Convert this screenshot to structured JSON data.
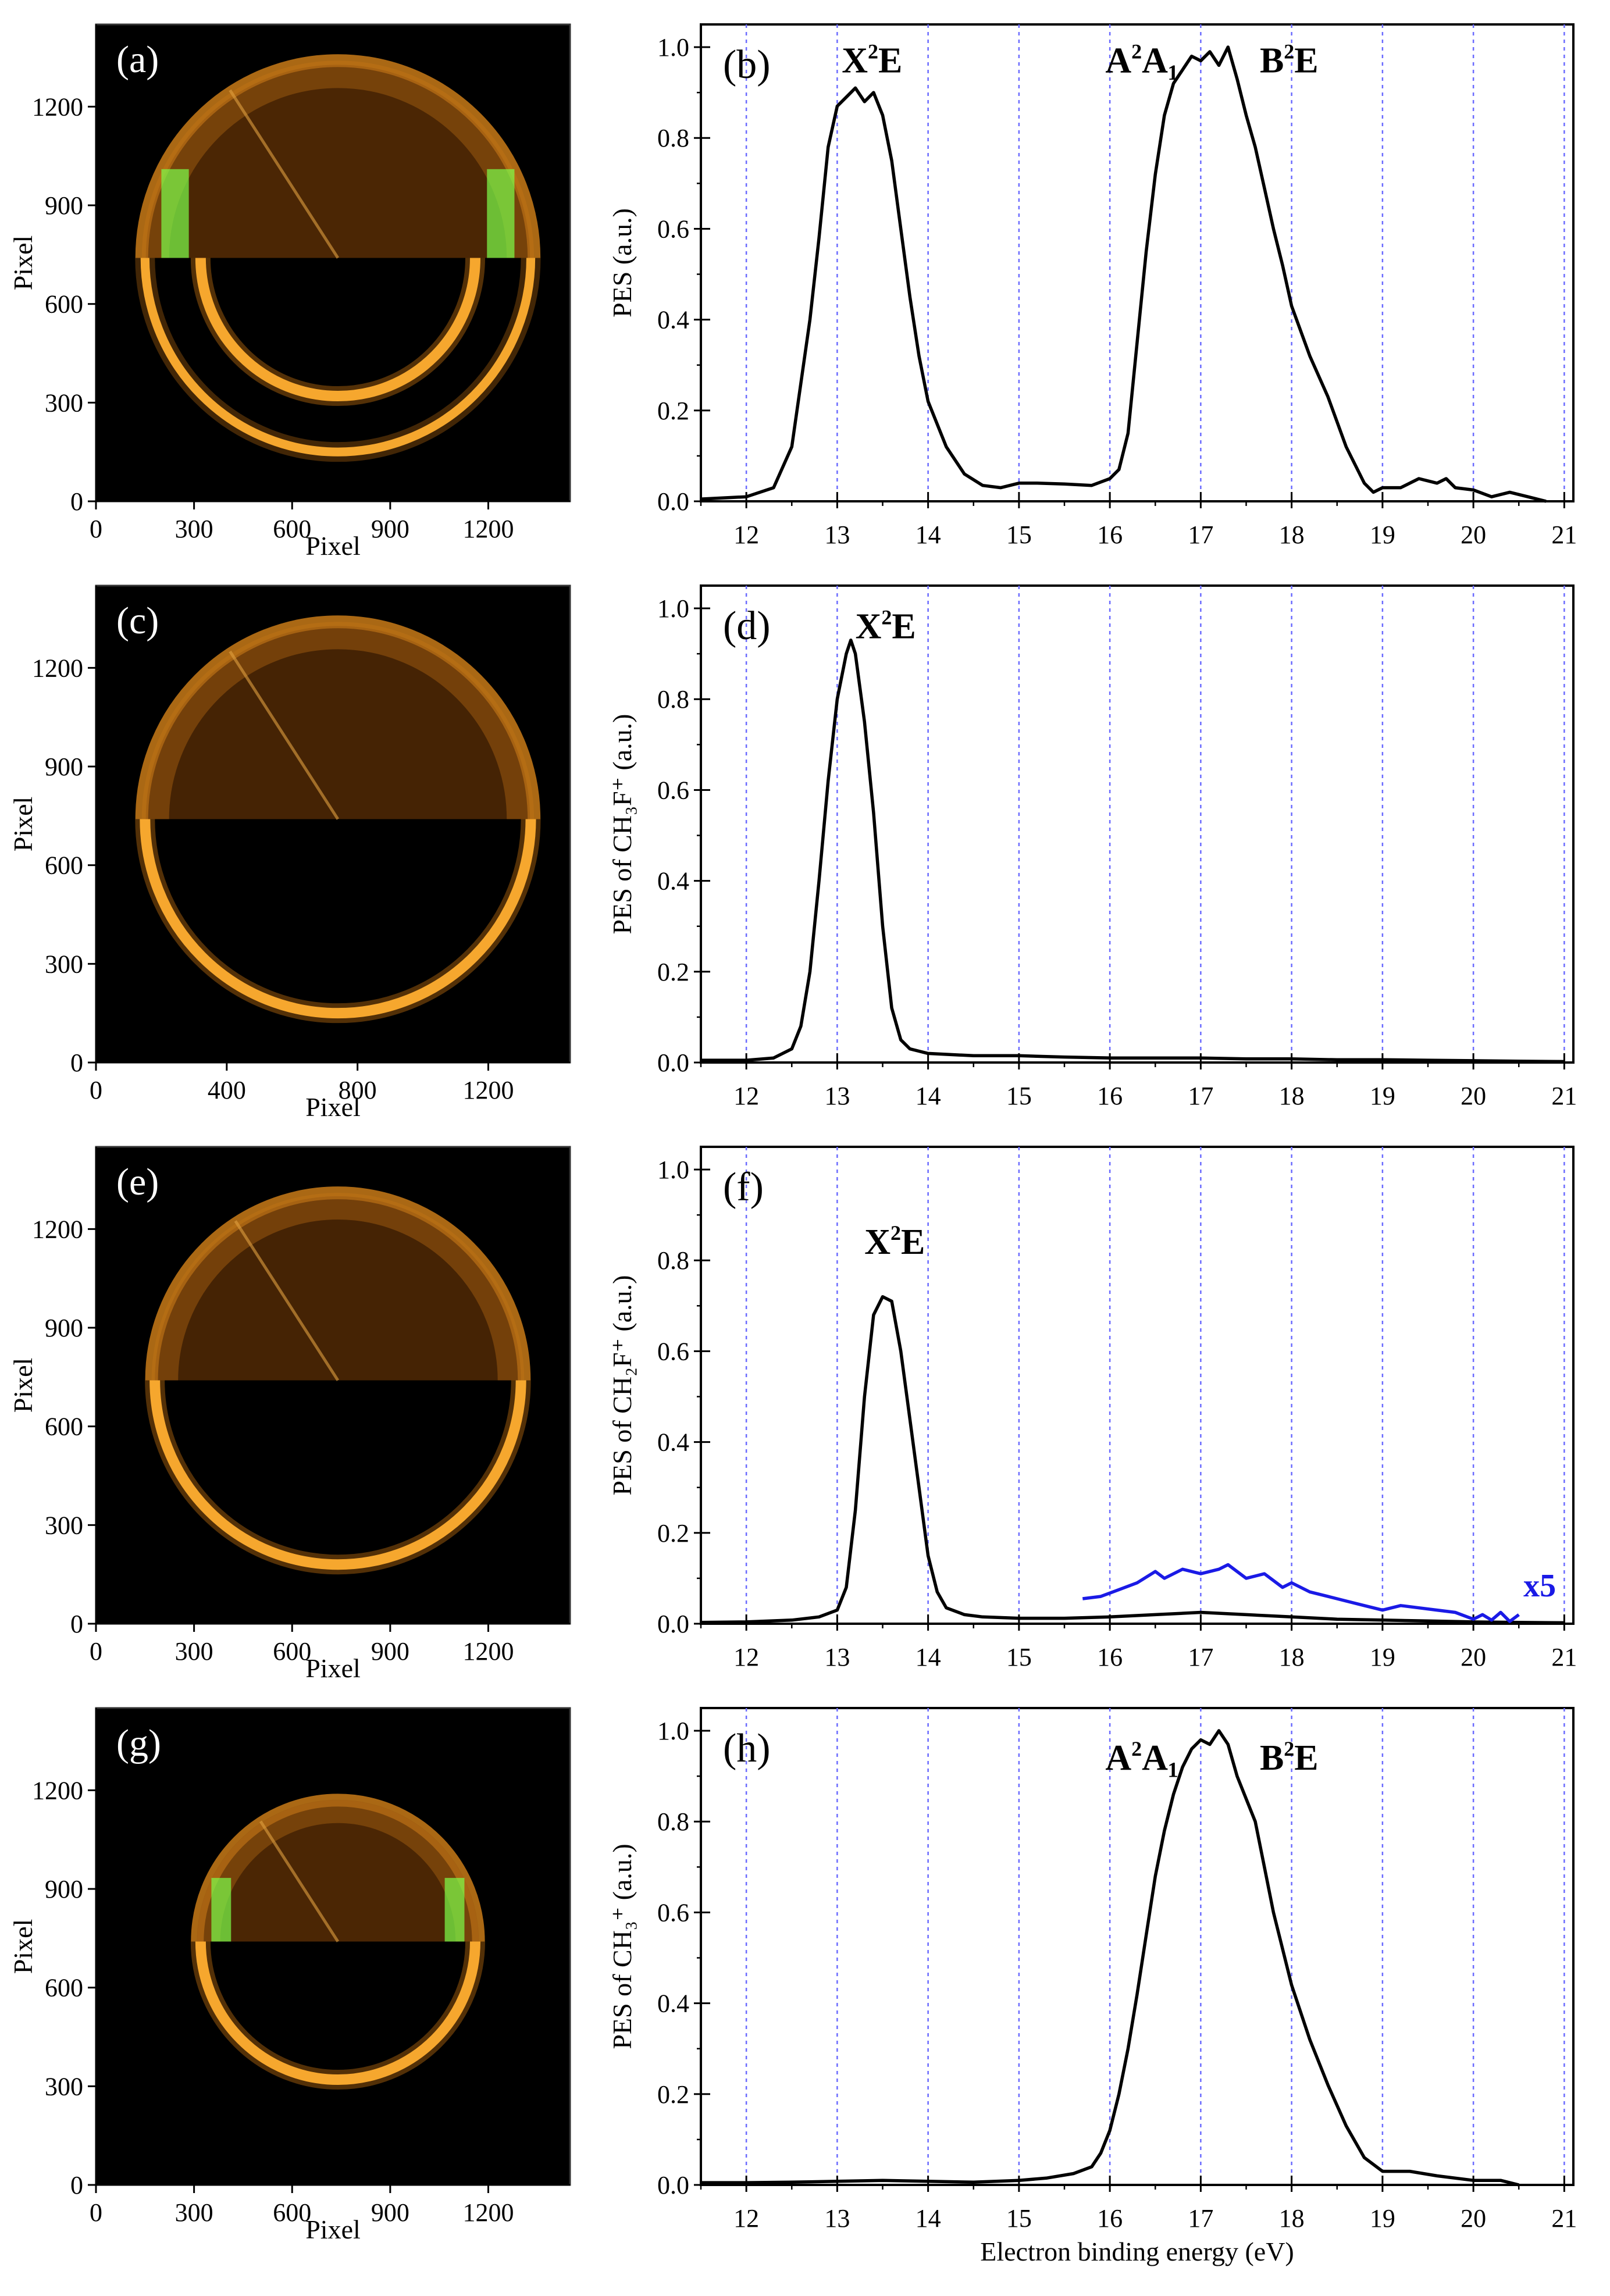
{
  "chart_data": [
    {
      "panel": "(a)",
      "type": "heatmap",
      "title": "",
      "xlabel": "Pixel",
      "ylabel": "Pixel",
      "xticks": [
        0,
        300,
        600,
        900,
        1200
      ],
      "yticks": [
        0,
        300,
        600,
        900,
        1200
      ],
      "xlim": [
        0,
        1450
      ],
      "ylim": [
        0,
        1450
      ],
      "rings": [
        {
          "cx": 740,
          "cy": 740,
          "r": 590,
          "half": "lower",
          "intensity": 0.8
        },
        {
          "cx": 740,
          "cy": 740,
          "r": 420,
          "half": "lower",
          "intensity": 1.0
        },
        {
          "cx": 740,
          "cy": 740,
          "r": 600,
          "half": "upper",
          "intensity": 0.7,
          "hot": true
        }
      ]
    },
    {
      "panel": "(b)",
      "type": "line",
      "title": "",
      "xlabel": "",
      "ylabel": "PES (a.u.)",
      "xlim": [
        11.5,
        21.1
      ],
      "ylim": [
        0,
        1.05
      ],
      "xticks": [
        "12",
        "13",
        "14",
        "15",
        "16",
        "17",
        "18",
        "19",
        "20",
        "21"
      ],
      "yticks": [
        "0.0",
        "0.2",
        "0.4",
        "0.6",
        "0.8",
        "1.0"
      ],
      "gridlines_x": [
        12,
        13,
        14,
        15,
        16,
        17,
        18,
        19,
        20,
        21
      ],
      "series": [
        {
          "name": "PES",
          "color": "#000000",
          "x": [
            11.5,
            12.0,
            12.3,
            12.5,
            12.7,
            12.8,
            12.9,
            13.0,
            13.1,
            13.2,
            13.3,
            13.4,
            13.5,
            13.6,
            13.7,
            13.8,
            13.9,
            14.0,
            14.2,
            14.4,
            14.6,
            14.8,
            15.0,
            15.2,
            15.5,
            15.8,
            16.0,
            16.1,
            16.2,
            16.3,
            16.4,
            16.5,
            16.6,
            16.7,
            16.8,
            16.9,
            17.0,
            17.1,
            17.2,
            17.3,
            17.4,
            17.5,
            17.6,
            17.7,
            17.8,
            17.9,
            18.0,
            18.2,
            18.4,
            18.6,
            18.8,
            18.9,
            19.0,
            19.2,
            19.4,
            19.6,
            19.7,
            19.8,
            20.0,
            20.2,
            20.4,
            20.6,
            20.8
          ],
          "y": [
            0.005,
            0.01,
            0.03,
            0.12,
            0.4,
            0.58,
            0.78,
            0.87,
            0.89,
            0.91,
            0.88,
            0.9,
            0.85,
            0.75,
            0.6,
            0.45,
            0.32,
            0.22,
            0.12,
            0.06,
            0.035,
            0.03,
            0.04,
            0.04,
            0.038,
            0.035,
            0.05,
            0.07,
            0.15,
            0.35,
            0.55,
            0.72,
            0.85,
            0.92,
            0.95,
            0.98,
            0.97,
            0.99,
            0.96,
            1.0,
            0.93,
            0.85,
            0.78,
            0.69,
            0.6,
            0.52,
            0.43,
            0.32,
            0.23,
            0.12,
            0.04,
            0.02,
            0.03,
            0.03,
            0.05,
            0.04,
            0.05,
            0.03,
            0.025,
            0.01,
            0.02,
            0.01,
            0.0
          ]
        }
      ],
      "annotations": [
        {
          "text": "X",
          "sup": "2",
          "rest": "E",
          "x": 13.05,
          "y": 0.97
        },
        {
          "text": "A",
          "sup": "2",
          "rest": "A₁",
          "x": 15.95,
          "y": 0.97
        },
        {
          "text": "B",
          "sup": "2",
          "rest": "E",
          "x": 17.65,
          "y": 0.97
        }
      ]
    },
    {
      "panel": "(c)",
      "type": "heatmap",
      "title": "",
      "xlabel": "Pixel",
      "ylabel": "Pixel",
      "xticks": [
        0,
        400,
        800,
        1200
      ],
      "yticks": [
        0,
        300,
        600,
        900,
        1200
      ],
      "xlim": [
        0,
        1450
      ],
      "ylim": [
        0,
        1450
      ],
      "rings": [
        {
          "cx": 740,
          "cy": 740,
          "r": 590,
          "half": "lower",
          "intensity": 1.0
        },
        {
          "cx": 740,
          "cy": 740,
          "r": 600,
          "half": "upper",
          "intensity": 0.55
        }
      ]
    },
    {
      "panel": "(d)",
      "type": "line",
      "title": "",
      "xlabel": "",
      "ylabel": "PES of CH₃F⁺ (a.u.)",
      "xlim": [
        11.5,
        21.1
      ],
      "ylim": [
        0,
        1.05
      ],
      "xticks": [
        "12",
        "13",
        "14",
        "15",
        "16",
        "17",
        "18",
        "19",
        "20",
        "21"
      ],
      "yticks": [
        "0.0",
        "0.2",
        "0.4",
        "0.6",
        "0.8",
        "1.0"
      ],
      "gridlines_x": [
        12,
        13,
        14,
        15,
        16,
        17,
        18,
        19,
        20,
        21
      ],
      "series": [
        {
          "name": "CH3F+",
          "color": "#000000",
          "x": [
            11.5,
            12.0,
            12.3,
            12.5,
            12.6,
            12.7,
            12.8,
            12.9,
            13.0,
            13.1,
            13.15,
            13.2,
            13.3,
            13.4,
            13.5,
            13.6,
            13.7,
            13.8,
            13.9,
            14.0,
            14.5,
            15.0,
            15.5,
            16.0,
            16.5,
            17.0,
            17.5,
            18.0,
            18.5,
            19.0,
            19.5,
            20.0,
            20.5,
            21.0
          ],
          "y": [
            0.005,
            0.005,
            0.01,
            0.03,
            0.08,
            0.2,
            0.4,
            0.62,
            0.8,
            0.9,
            0.93,
            0.9,
            0.75,
            0.55,
            0.3,
            0.12,
            0.05,
            0.03,
            0.025,
            0.02,
            0.015,
            0.015,
            0.012,
            0.01,
            0.01,
            0.01,
            0.008,
            0.008,
            0.006,
            0.006,
            0.005,
            0.004,
            0.003,
            0.002
          ]
        }
      ],
      "annotations": [
        {
          "text": "X",
          "sup": "2",
          "rest": "E",
          "x": 13.2,
          "y": 0.96
        }
      ]
    },
    {
      "panel": "(e)",
      "type": "heatmap",
      "title": "",
      "xlabel": "Pixel",
      "ylabel": "Pixel",
      "xticks": [
        0,
        300,
        600,
        900,
        1200
      ],
      "yticks": [
        0,
        300,
        600,
        900,
        1200
      ],
      "xlim": [
        0,
        1450
      ],
      "ylim": [
        0,
        1450
      ],
      "rings": [
        {
          "cx": 740,
          "cy": 740,
          "r": 560,
          "half": "lower",
          "intensity": 1.0
        },
        {
          "cx": 740,
          "cy": 740,
          "r": 570,
          "half": "upper",
          "intensity": 0.55
        }
      ]
    },
    {
      "panel": "(f)",
      "type": "line",
      "title": "",
      "xlabel": "",
      "ylabel": "PES of CH₂F⁺ (a.u.)",
      "xlim": [
        11.5,
        21.1
      ],
      "ylim": [
        0,
        1.05
      ],
      "xticks": [
        "12",
        "13",
        "14",
        "15",
        "16",
        "17",
        "18",
        "19",
        "20",
        "21"
      ],
      "yticks": [
        "0.0",
        "0.2",
        "0.4",
        "0.6",
        "0.8",
        "1.0"
      ],
      "gridlines_x": [
        12,
        13,
        14,
        15,
        16,
        17,
        18,
        19,
        20,
        21
      ],
      "series": [
        {
          "name": "CH2F+",
          "color": "#000000",
          "x": [
            11.5,
            12.0,
            12.5,
            12.8,
            13.0,
            13.1,
            13.2,
            13.3,
            13.4,
            13.5,
            13.6,
            13.7,
            13.8,
            13.9,
            14.0,
            14.1,
            14.2,
            14.4,
            14.6,
            15.0,
            15.5,
            16.0,
            16.5,
            17.0,
            17.5,
            18.0,
            18.5,
            19.0,
            19.5,
            20.0,
            20.5,
            21.0
          ],
          "y": [
            0.003,
            0.004,
            0.008,
            0.015,
            0.03,
            0.08,
            0.25,
            0.5,
            0.68,
            0.72,
            0.71,
            0.6,
            0.45,
            0.3,
            0.15,
            0.07,
            0.035,
            0.02,
            0.015,
            0.012,
            0.012,
            0.015,
            0.02,
            0.025,
            0.02,
            0.015,
            0.01,
            0.008,
            0.006,
            0.004,
            0.003,
            0.002
          ]
        },
        {
          "name": "x5",
          "color": "#1a1ae6",
          "x": [
            15.7,
            15.9,
            16.1,
            16.3,
            16.5,
            16.6,
            16.8,
            17.0,
            17.2,
            17.3,
            17.5,
            17.7,
            17.9,
            18.0,
            18.2,
            18.4,
            18.6,
            18.8,
            19.0,
            19.2,
            19.4,
            19.6,
            19.8,
            20.0,
            20.1,
            20.2,
            20.3,
            20.4,
            20.5
          ],
          "y": [
            0.055,
            0.06,
            0.075,
            0.09,
            0.115,
            0.1,
            0.12,
            0.11,
            0.12,
            0.13,
            0.1,
            0.11,
            0.08,
            0.09,
            0.07,
            0.06,
            0.05,
            0.04,
            0.03,
            0.04,
            0.035,
            0.03,
            0.025,
            0.01,
            0.02,
            0.008,
            0.025,
            0.005,
            0.02
          ]
        }
      ],
      "annotations": [
        {
          "text": "X",
          "sup": "2",
          "rest": "E",
          "x": 13.3,
          "y": 0.84
        }
      ],
      "scale_label": "x5"
    },
    {
      "panel": "(g)",
      "type": "heatmap",
      "title": "",
      "xlabel": "Pixel",
      "ylabel": "Pixel",
      "xticks": [
        0,
        300,
        600,
        900,
        1200
      ],
      "yticks": [
        0,
        300,
        600,
        900,
        1200
      ],
      "xlim": [
        0,
        1450
      ],
      "ylim": [
        0,
        1450
      ],
      "rings": [
        {
          "cx": 740,
          "cy": 740,
          "r": 420,
          "half": "lower",
          "intensity": 1.0
        },
        {
          "cx": 740,
          "cy": 740,
          "r": 430,
          "half": "upper",
          "intensity": 0.7,
          "hot": true
        }
      ]
    },
    {
      "panel": "(h)",
      "type": "line",
      "title": "",
      "xlabel": "Electron binding energy (eV)",
      "ylabel": "PES of CH₃⁺ (a.u.)",
      "xlim": [
        11.5,
        21.1
      ],
      "ylim": [
        0,
        1.05
      ],
      "xticks": [
        "12",
        "13",
        "14",
        "15",
        "16",
        "17",
        "18",
        "19",
        "20",
        "21"
      ],
      "yticks": [
        "0.0",
        "0.2",
        "0.4",
        "0.6",
        "0.8",
        "1.0"
      ],
      "gridlines_x": [
        12,
        13,
        14,
        15,
        16,
        17,
        18,
        19,
        20,
        21
      ],
      "series": [
        {
          "name": "CH3+",
          "color": "#000000",
          "x": [
            11.5,
            12.0,
            12.5,
            13.0,
            13.5,
            14.0,
            14.5,
            15.0,
            15.3,
            15.6,
            15.8,
            15.9,
            16.0,
            16.1,
            16.2,
            16.3,
            16.4,
            16.5,
            16.6,
            16.7,
            16.8,
            16.9,
            17.0,
            17.1,
            17.2,
            17.3,
            17.4,
            17.5,
            17.6,
            17.7,
            17.8,
            17.9,
            18.0,
            18.2,
            18.4,
            18.6,
            18.8,
            19.0,
            19.3,
            19.6,
            20.0,
            20.3,
            20.5
          ],
          "y": [
            0.005,
            0.005,
            0.006,
            0.008,
            0.01,
            0.008,
            0.006,
            0.01,
            0.015,
            0.025,
            0.04,
            0.07,
            0.12,
            0.2,
            0.3,
            0.42,
            0.55,
            0.68,
            0.78,
            0.86,
            0.92,
            0.96,
            0.98,
            0.97,
            1.0,
            0.97,
            0.9,
            0.85,
            0.8,
            0.7,
            0.6,
            0.52,
            0.44,
            0.32,
            0.22,
            0.13,
            0.06,
            0.03,
            0.03,
            0.02,
            0.01,
            0.01,
            0.0
          ]
        }
      ],
      "annotations": [
        {
          "text": "A",
          "sup": "2",
          "rest": "A₁",
          "x": 15.95,
          "y": 0.94
        },
        {
          "text": "B",
          "sup": "2",
          "rest": "E",
          "x": 17.65,
          "y": 0.94
        }
      ]
    }
  ]
}
